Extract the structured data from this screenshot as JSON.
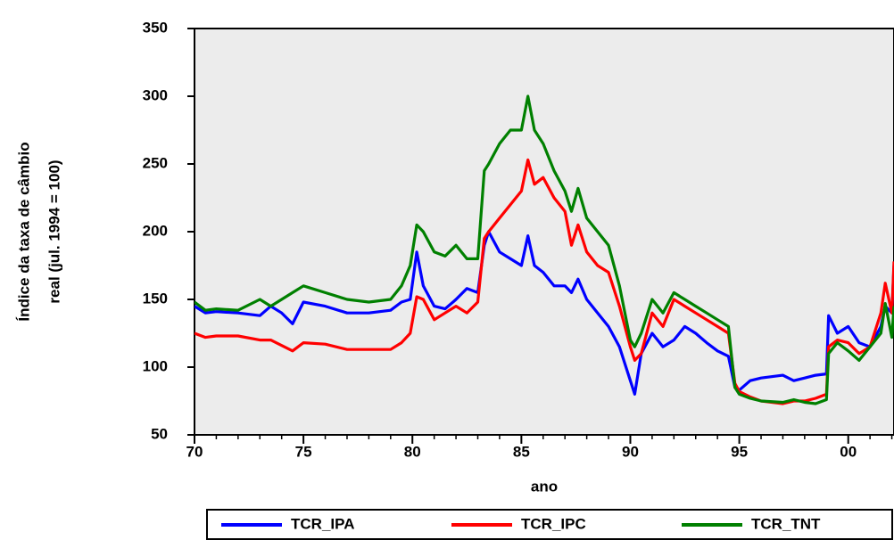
{
  "chart_data": {
    "type": "line",
    "xlabel": "ano",
    "ylabel": [
      "Índice da taxa de câmbio",
      "real (jul. 1994 = 100)"
    ],
    "x": [
      1970,
      1970.5,
      1971,
      1972,
      1973,
      1973.5,
      1974,
      1974.5,
      1975,
      1976,
      1977,
      1978,
      1979,
      1979.5,
      1979.9,
      1980.2,
      1980.5,
      1981,
      1981.5,
      1982,
      1982.5,
      1983,
      1983.3,
      1983.5,
      1984,
      1984.5,
      1985,
      1985.3,
      1985.6,
      1986,
      1986.5,
      1987,
      1987.3,
      1987.6,
      1988,
      1988.5,
      1989,
      1989.5,
      1990,
      1990.2,
      1990.5,
      1991,
      1991.5,
      1992,
      1992.5,
      1993,
      1993.5,
      1994,
      1994.5,
      1994.8,
      1995,
      1995.5,
      1996,
      1997,
      1997.5,
      1998,
      1998.5,
      1999,
      1999.1,
      1999.5,
      2000,
      2000.5,
      2001,
      2001.5,
      2001.7,
      2002,
      2002.1
    ],
    "series": [
      {
        "name": "TCR_IPA",
        "color": "#0000ff",
        "values": [
          145,
          140,
          141,
          140,
          138,
          145,
          140,
          132,
          148,
          145,
          140,
          140,
          142,
          148,
          150,
          185,
          160,
          145,
          143,
          150,
          158,
          155,
          190,
          200,
          185,
          180,
          175,
          197,
          175,
          170,
          160,
          160,
          155,
          165,
          150,
          140,
          130,
          115,
          90,
          80,
          110,
          125,
          115,
          120,
          130,
          125,
          118,
          112,
          108,
          85,
          83,
          90,
          92,
          94,
          90,
          92,
          94,
          95,
          138,
          125,
          130,
          118,
          115,
          130,
          145,
          140,
          175
        ]
      },
      {
        "name": "TCR_IPC",
        "color": "#ff0000",
        "values": [
          125,
          122,
          123,
          123,
          120,
          120,
          116,
          112,
          118,
          117,
          113,
          113,
          113,
          118,
          125,
          152,
          150,
          135,
          140,
          145,
          140,
          148,
          195,
          200,
          210,
          220,
          230,
          253,
          235,
          240,
          225,
          215,
          190,
          205,
          185,
          175,
          170,
          145,
          115,
          105,
          110,
          140,
          130,
          150,
          145,
          140,
          135,
          130,
          125,
          88,
          82,
          78,
          75,
          73,
          75,
          75,
          77,
          80,
          115,
          120,
          118,
          110,
          115,
          140,
          162,
          140,
          178
        ]
      },
      {
        "name": "TCR_TNT",
        "color": "#008000",
        "values": [
          148,
          142,
          143,
          142,
          150,
          145,
          150,
          155,
          160,
          155,
          150,
          148,
          150,
          160,
          175,
          205,
          200,
          185,
          182,
          190,
          180,
          180,
          245,
          250,
          265,
          275,
          275,
          300,
          275,
          265,
          245,
          230,
          215,
          232,
          210,
          200,
          190,
          160,
          120,
          115,
          125,
          150,
          140,
          155,
          150,
          145,
          140,
          135,
          130,
          85,
          80,
          77,
          75,
          74,
          76,
          74,
          73,
          76,
          110,
          118,
          112,
          105,
          115,
          125,
          147,
          122,
          145
        ]
      }
    ],
    "xlim": [
      1970,
      2002.1
    ],
    "xticks": [
      {
        "value": 1970,
        "label": "70"
      },
      {
        "value": 1975,
        "label": "75"
      },
      {
        "value": 1980,
        "label": "80"
      },
      {
        "value": 1985,
        "label": "85"
      },
      {
        "value": 1990,
        "label": "90"
      },
      {
        "value": 1995,
        "label": "95"
      },
      {
        "value": 2000,
        "label": "00"
      }
    ],
    "ylim": [
      50,
      350
    ],
    "yticks": [
      50,
      100,
      150,
      200,
      250,
      300,
      350
    ],
    "legend": "bottom"
  }
}
